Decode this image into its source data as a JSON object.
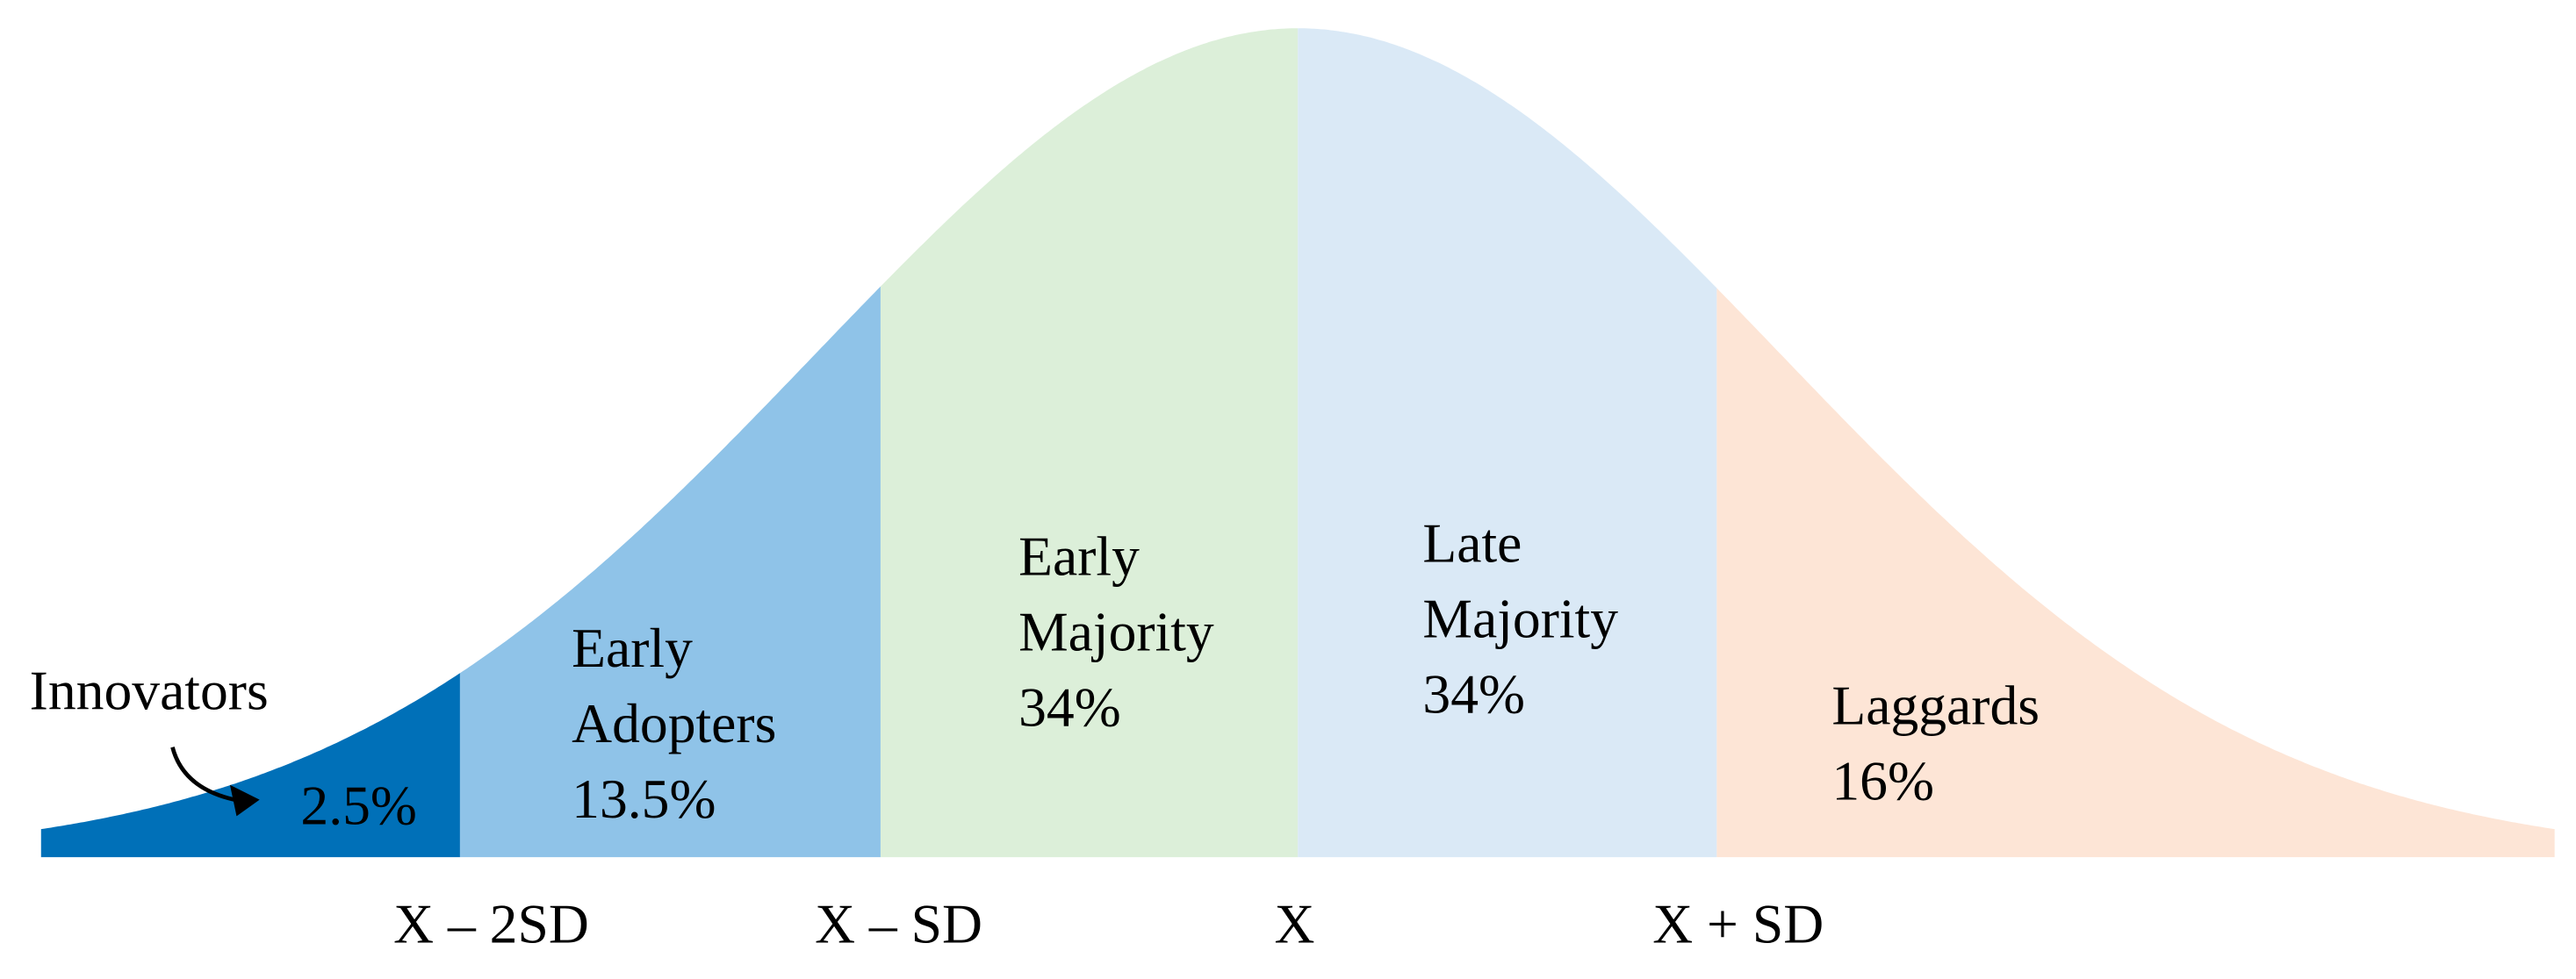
{
  "segments": [
    {
      "label_lines": [
        "Innovators"
      ],
      "percent": "2.5%"
    },
    {
      "label_lines": [
        "Early",
        "Adopters"
      ],
      "percent": "13.5%"
    },
    {
      "label_lines": [
        "Early",
        "Majority"
      ],
      "percent": "34%"
    },
    {
      "label_lines": [
        "Late",
        "Majority"
      ],
      "percent": "34%"
    },
    {
      "label_lines": [
        "Laggards"
      ],
      "percent": "16%"
    }
  ],
  "axis_labels": [
    "X – 2SD",
    "X – SD",
    "X",
    "X + SD"
  ]
}
